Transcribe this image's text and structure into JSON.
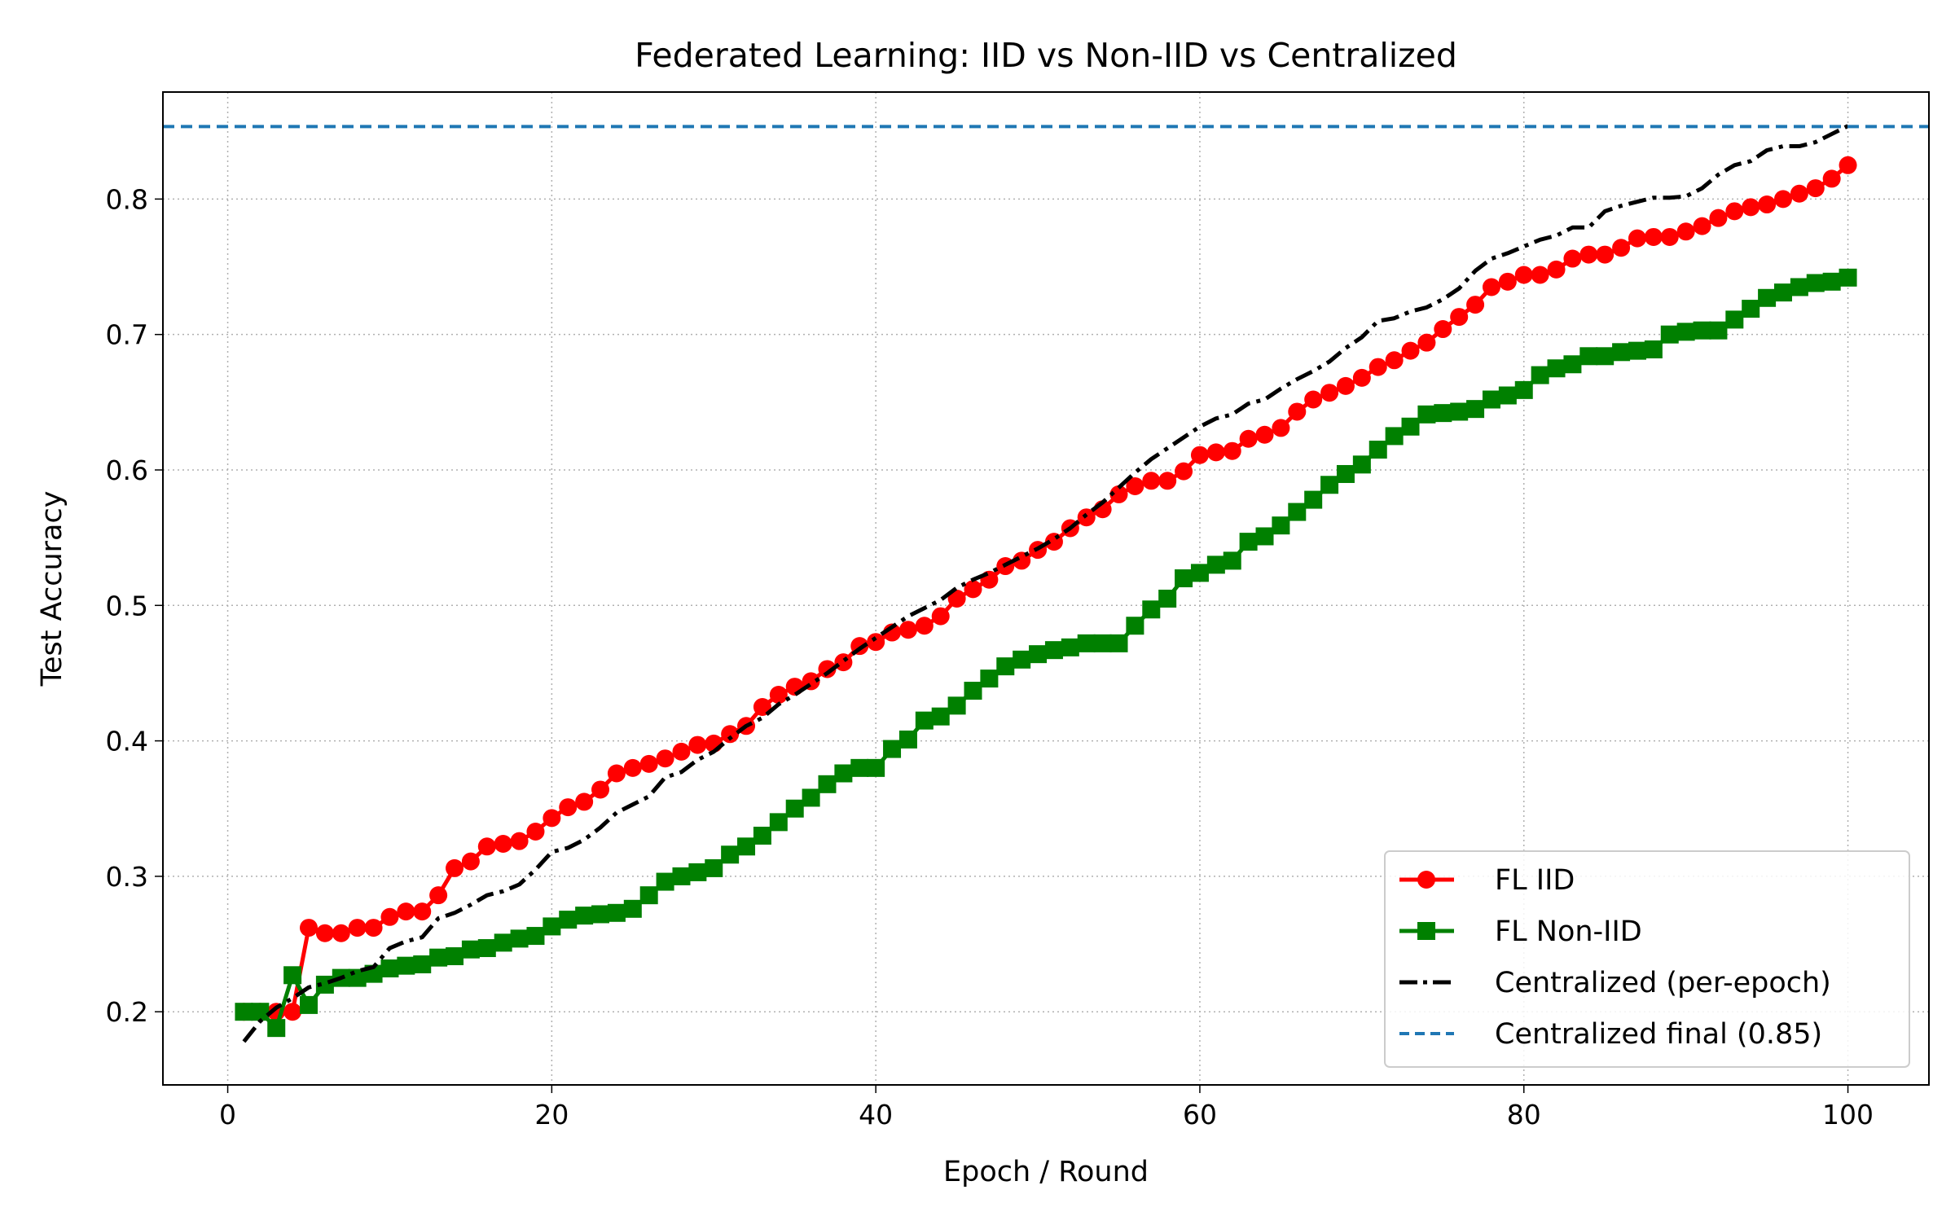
{
  "chart_data": {
    "type": "line",
    "title": "Federated Learning: IID vs Non-IID vs Centralized",
    "xlabel": "Epoch / Round",
    "ylabel": "Test Accuracy",
    "xlim": [
      -4,
      105
    ],
    "ylim": [
      0.146,
      0.879
    ],
    "xticks": [
      0,
      20,
      40,
      60,
      80,
      100
    ],
    "yticks": [
      0.2,
      0.3,
      0.4,
      0.5,
      0.6,
      0.7,
      0.8
    ],
    "grid": true,
    "legend_position": "lower-right",
    "x": [
      1,
      2,
      3,
      4,
      5,
      6,
      7,
      8,
      9,
      10,
      11,
      12,
      13,
      14,
      15,
      16,
      17,
      18,
      19,
      20,
      21,
      22,
      23,
      24,
      25,
      26,
      27,
      28,
      29,
      30,
      31,
      32,
      33,
      34,
      35,
      36,
      37,
      38,
      39,
      40,
      41,
      42,
      43,
      44,
      45,
      46,
      47,
      48,
      49,
      50,
      51,
      52,
      53,
      54,
      55,
      56,
      57,
      58,
      59,
      60,
      61,
      62,
      63,
      64,
      65,
      66,
      67,
      68,
      69,
      70,
      71,
      72,
      73,
      74,
      75,
      76,
      77,
      78,
      79,
      80,
      81,
      82,
      83,
      84,
      85,
      86,
      87,
      88,
      89,
      90,
      91,
      92,
      93,
      94,
      95,
      96,
      97,
      98,
      99,
      100
    ],
    "series": [
      {
        "name": "FL IID",
        "color": "#ff0000",
        "style": "solid",
        "marker": "circle",
        "values": [
          0.2,
          0.2,
          0.2,
          0.2,
          0.262,
          0.258,
          0.258,
          0.262,
          0.262,
          0.27,
          0.274,
          0.274,
          0.286,
          0.306,
          0.311,
          0.322,
          0.324,
          0.326,
          0.333,
          0.343,
          0.351,
          0.355,
          0.364,
          0.376,
          0.38,
          0.383,
          0.387,
          0.392,
          0.397,
          0.398,
          0.405,
          0.411,
          0.425,
          0.434,
          0.44,
          0.444,
          0.453,
          0.458,
          0.47,
          0.473,
          0.48,
          0.482,
          0.485,
          0.492,
          0.505,
          0.512,
          0.519,
          0.529,
          0.533,
          0.541,
          0.547,
          0.557,
          0.565,
          0.571,
          0.582,
          0.588,
          0.592,
          0.592,
          0.599,
          0.611,
          0.613,
          0.614,
          0.623,
          0.626,
          0.631,
          0.643,
          0.652,
          0.657,
          0.662,
          0.668,
          0.676,
          0.681,
          0.688,
          0.694,
          0.704,
          0.713,
          0.722,
          0.735,
          0.739,
          0.744,
          0.744,
          0.748,
          0.756,
          0.759,
          0.759,
          0.764,
          0.771,
          0.772,
          0.772,
          0.776,
          0.78,
          0.786,
          0.791,
          0.794,
          0.796,
          0.8,
          0.804,
          0.808,
          0.815,
          0.825
        ]
      },
      {
        "name": "FL Non-IID",
        "color": "#008000",
        "style": "solid",
        "marker": "square",
        "values": [
          0.2,
          0.2,
          0.188,
          0.227,
          0.205,
          0.22,
          0.225,
          0.225,
          0.228,
          0.232,
          0.234,
          0.235,
          0.24,
          0.241,
          0.246,
          0.247,
          0.251,
          0.254,
          0.256,
          0.263,
          0.268,
          0.271,
          0.272,
          0.273,
          0.276,
          0.286,
          0.296,
          0.3,
          0.303,
          0.306,
          0.316,
          0.322,
          0.33,
          0.34,
          0.35,
          0.358,
          0.368,
          0.376,
          0.38,
          0.38,
          0.394,
          0.401,
          0.415,
          0.418,
          0.426,
          0.437,
          0.446,
          0.455,
          0.46,
          0.464,
          0.467,
          0.469,
          0.472,
          0.472,
          0.472,
          0.485,
          0.497,
          0.505,
          0.52,
          0.524,
          0.53,
          0.533,
          0.547,
          0.551,
          0.559,
          0.569,
          0.578,
          0.589,
          0.597,
          0.604,
          0.615,
          0.625,
          0.632,
          0.641,
          0.642,
          0.643,
          0.645,
          0.652,
          0.655,
          0.659,
          0.67,
          0.675,
          0.678,
          0.684,
          0.684,
          0.687,
          0.688,
          0.689,
          0.7,
          0.702,
          0.703,
          0.703,
          0.711,
          0.719,
          0.727,
          0.731,
          0.735,
          0.738,
          0.739,
          0.742
        ]
      },
      {
        "name": "Centralized (per-epoch)",
        "color": "#000000",
        "style": "dashdot",
        "marker": "none",
        "values": [
          0.178,
          0.193,
          0.203,
          0.21,
          0.218,
          0.221,
          0.225,
          0.23,
          0.233,
          0.247,
          0.252,
          0.255,
          0.269,
          0.273,
          0.279,
          0.286,
          0.289,
          0.294,
          0.305,
          0.318,
          0.321,
          0.327,
          0.336,
          0.347,
          0.353,
          0.359,
          0.373,
          0.377,
          0.386,
          0.392,
          0.402,
          0.411,
          0.417,
          0.427,
          0.434,
          0.442,
          0.45,
          0.459,
          0.468,
          0.476,
          0.484,
          0.492,
          0.498,
          0.504,
          0.513,
          0.519,
          0.524,
          0.53,
          0.536,
          0.542,
          0.549,
          0.557,
          0.567,
          0.576,
          0.587,
          0.598,
          0.608,
          0.616,
          0.624,
          0.632,
          0.638,
          0.641,
          0.649,
          0.652,
          0.66,
          0.667,
          0.673,
          0.68,
          0.69,
          0.698,
          0.71,
          0.712,
          0.717,
          0.72,
          0.726,
          0.734,
          0.747,
          0.756,
          0.76,
          0.765,
          0.77,
          0.773,
          0.779,
          0.779,
          0.791,
          0.795,
          0.798,
          0.801,
          0.801,
          0.802,
          0.808,
          0.818,
          0.825,
          0.828,
          0.836,
          0.839,
          0.839,
          0.842,
          0.848,
          0.854
        ]
      },
      {
        "name": "Centralized final (0.85)",
        "color": "#1f77b4",
        "style": "dashed",
        "marker": "none",
        "hline": 0.8535
      }
    ]
  }
}
